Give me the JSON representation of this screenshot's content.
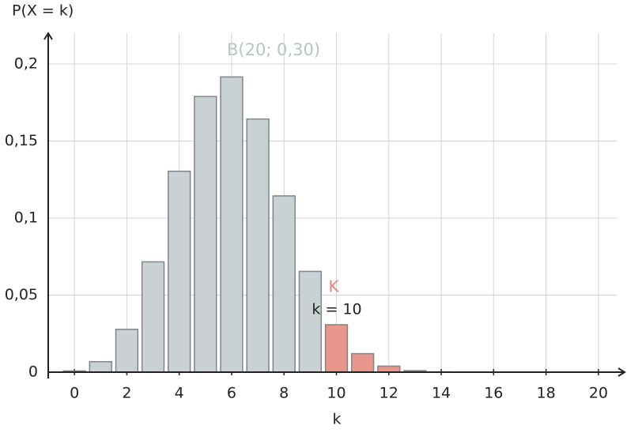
{
  "chart_data": {
    "type": "bar",
    "title": "B(20; 0,30)",
    "y_label": "P(X = k)",
    "x_label": "k",
    "annotations": [
      "K",
      "k = 10"
    ],
    "x": [
      0,
      1,
      2,
      3,
      4,
      5,
      6,
      7,
      8,
      9,
      10,
      11,
      12,
      13,
      14,
      15,
      16,
      17,
      18,
      19,
      20
    ],
    "values": [
      0.0008,
      0.0068,
      0.0278,
      0.0716,
      0.1304,
      0.1789,
      0.1916,
      0.1643,
      0.1144,
      0.0654,
      0.0308,
      0.012,
      0.0039,
      0.001,
      0.0002,
      0,
      0,
      0,
      0,
      0,
      0
    ],
    "colors": [
      "#c9d1d4",
      "#c9d1d4",
      "#c9d1d4",
      "#c9d1d4",
      "#c9d1d4",
      "#c9d1d4",
      "#c9d1d4",
      "#c9d1d4",
      "#c9d1d4",
      "#c9d1d4",
      "#e8958b",
      "#e8958b",
      "#e8958b",
      "#e8958b",
      "#e8958b",
      "#e8958b",
      "#e8958b",
      "#e8958b",
      "#e8958b",
      "#e8958b",
      "#e8958b"
    ],
    "xlim": [
      -1,
      21
    ],
    "ylim": [
      0,
      0.22
    ],
    "xticks": [
      0,
      2,
      4,
      6,
      8,
      10,
      12,
      14,
      16,
      18,
      20
    ],
    "yticks": [
      0,
      {
        "value": 0.05,
        "label": "0,05"
      },
      {
        "value": 0.1,
        "label": "0,1"
      },
      {
        "value": 0.15,
        "label": "0,15"
      },
      {
        "value": 0.2,
        "label": "0,2"
      }
    ],
    "grid": true
  }
}
